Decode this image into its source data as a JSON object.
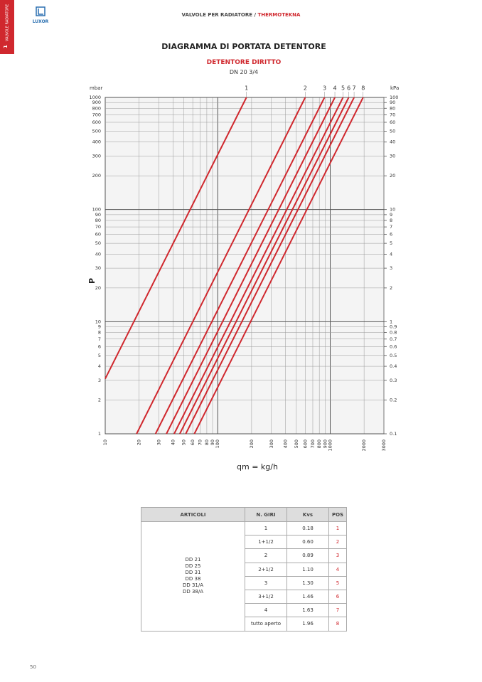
{
  "header": {
    "logo": "LUXOR",
    "section": "VALVOLE PER RADIATORE",
    "separator": "/",
    "brand": "THERMOTEKNA"
  },
  "side_tab": {
    "number": "1",
    "label": "VALVOLE RADIATORE"
  },
  "chart_data": {
    "type": "line",
    "title": "DIAGRAMMA DI PORTATA DETENTORE",
    "subtitle": "DETENTORE DIRITTO",
    "caption": "DN 20 3/4",
    "y_label": "P",
    "y_unit": "mbar",
    "y2_unit": "kPa",
    "x_label": "qm = kg/h",
    "xscale": "log",
    "yscale": "log",
    "grid": true,
    "xlim": [
      10,
      3000
    ],
    "ylim": [
      1,
      1000
    ],
    "y2lim": [
      0.1,
      100
    ],
    "xticks": [
      10,
      20,
      30,
      40,
      50,
      60,
      70,
      80,
      90,
      100,
      200,
      300,
      400,
      500,
      600,
      700,
      800,
      900,
      1000,
      2000,
      3000
    ],
    "yticks": [
      1,
      2,
      3,
      4,
      5,
      6,
      7,
      8,
      9,
      10,
      20,
      30,
      40,
      50,
      60,
      70,
      80,
      90,
      100,
      200,
      300,
      400,
      500,
      600,
      700,
      800,
      900,
      1000
    ],
    "y2ticks": [
      0.1,
      0.2,
      0.3,
      0.4,
      0.5,
      0.6,
      0.7,
      0.8,
      0.9,
      1,
      2,
      3,
      4,
      5,
      6,
      7,
      8,
      9,
      10,
      20,
      30,
      40,
      50,
      60,
      70,
      80,
      90,
      100
    ],
    "series": [
      {
        "name": "1",
        "color": "#d0282e",
        "x": [
          10,
          180
        ],
        "values": [
          3.1,
          1000
        ]
      },
      {
        "name": "2",
        "color": "#d0282e",
        "x": [
          19,
          600
        ],
        "values": [
          1,
          1000
        ]
      },
      {
        "name": "3",
        "color": "#d0282e",
        "x": [
          28,
          890
        ],
        "values": [
          1,
          1000
        ]
      },
      {
        "name": "4",
        "color": "#d0282e",
        "x": [
          35,
          1100
        ],
        "values": [
          1,
          1000
        ]
      },
      {
        "name": "5",
        "color": "#d0282e",
        "x": [
          41,
          1300
        ],
        "values": [
          1,
          1000
        ]
      },
      {
        "name": "6",
        "color": "#d0282e",
        "x": [
          46,
          1460
        ],
        "values": [
          1,
          1000
        ]
      },
      {
        "name": "7",
        "color": "#d0282e",
        "x": [
          52,
          1630
        ],
        "values": [
          1,
          1000
        ]
      },
      {
        "name": "8",
        "color": "#d0282e",
        "x": [
          62,
          1960
        ],
        "values": [
          1,
          1000
        ]
      }
    ]
  },
  "table": {
    "headers": [
      "ARTICOLI",
      "N. GIRI",
      "Kvs",
      "POS"
    ],
    "articoli": [
      "DD 21",
      "DD 25",
      "DD 31",
      "DD 38",
      "DD 31/A",
      "DD 38/A"
    ],
    "rows": [
      [
        "1",
        "0.18",
        "1"
      ],
      [
        "1+1/2",
        "0.60",
        "2"
      ],
      [
        "2",
        "0.89",
        "3"
      ],
      [
        "2+1/2",
        "1.10",
        "4"
      ],
      [
        "3",
        "1.30",
        "5"
      ],
      [
        "3+1/2",
        "1.46",
        "6"
      ],
      [
        "4",
        "1.63",
        "7"
      ],
      [
        "tutto aperto",
        "1.96",
        "8"
      ]
    ]
  },
  "page_number": "50"
}
